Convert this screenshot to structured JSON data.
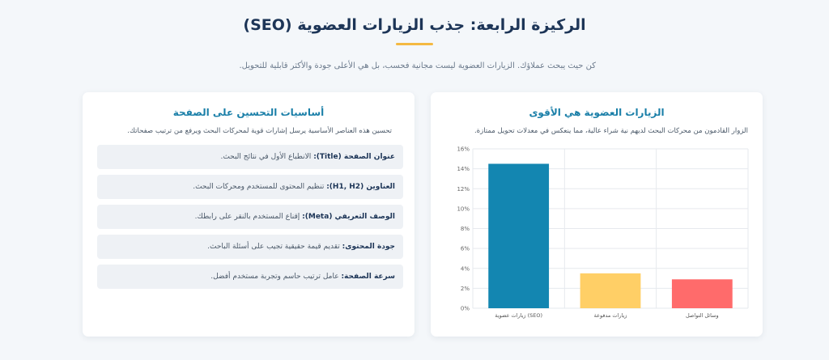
{
  "page": {
    "title": "الركيزة الرابعة: جذب الزيارات العضوية (SEO)",
    "subtitle": "كن حيث يبحث عملاؤك. الزيارات العضوية ليست مجانية فحسب، بل هي الأعلى جودة والأكثر قابلية للتحويل."
  },
  "traffic_card": {
    "title": "الزيارات العضوية هي الأقوى",
    "description": "الزوار القادمون من محركات البحث لديهم نية شراء عالية، مما ينعكس في معدلات تحويل ممتازة."
  },
  "onpage_card": {
    "title": "أساسيات التحسين على الصفحة",
    "description": "تحسين هذه العناصر الأساسية يرسل إشارات قوية لمحركات البحث ويرفع من ترتيب صفحاتك.",
    "items": [
      {
        "term": "عنوان الصفحة (Title):",
        "text": " الانطباع الأول في نتائج البحث."
      },
      {
        "term": "العناوين (H1, H2):",
        "text": " تنظيم المحتوى للمستخدم ومحركات البحث."
      },
      {
        "term": "الوصف التعريفي (Meta):",
        "text": " إقناع المستخدم بالنقر على رابطك."
      },
      {
        "term": "جودة المحتوى:",
        "text": " تقديم قيمة حقيقية تجيب على أسئلة الباحث."
      },
      {
        "term": "سرعة الصفحة:",
        "text": " عامل ترتيب حاسم وتجربة مستخدم أفضل."
      }
    ]
  },
  "chart_data": {
    "type": "bar",
    "categories": [
      "زيارات عضوية (SEO)",
      "زيارات مدفوعة",
      "وسائل التواصل"
    ],
    "values": [
      14.5,
      3.5,
      2.9
    ],
    "colors": [
      "#1386b1",
      "#ffcf66",
      "#ff6b6b"
    ],
    "ylim": [
      0,
      16
    ],
    "yticks": [
      "0%",
      "2%",
      "4%",
      "6%",
      "8%",
      "10%",
      "12%",
      "14%",
      "16%"
    ],
    "grid": true
  }
}
